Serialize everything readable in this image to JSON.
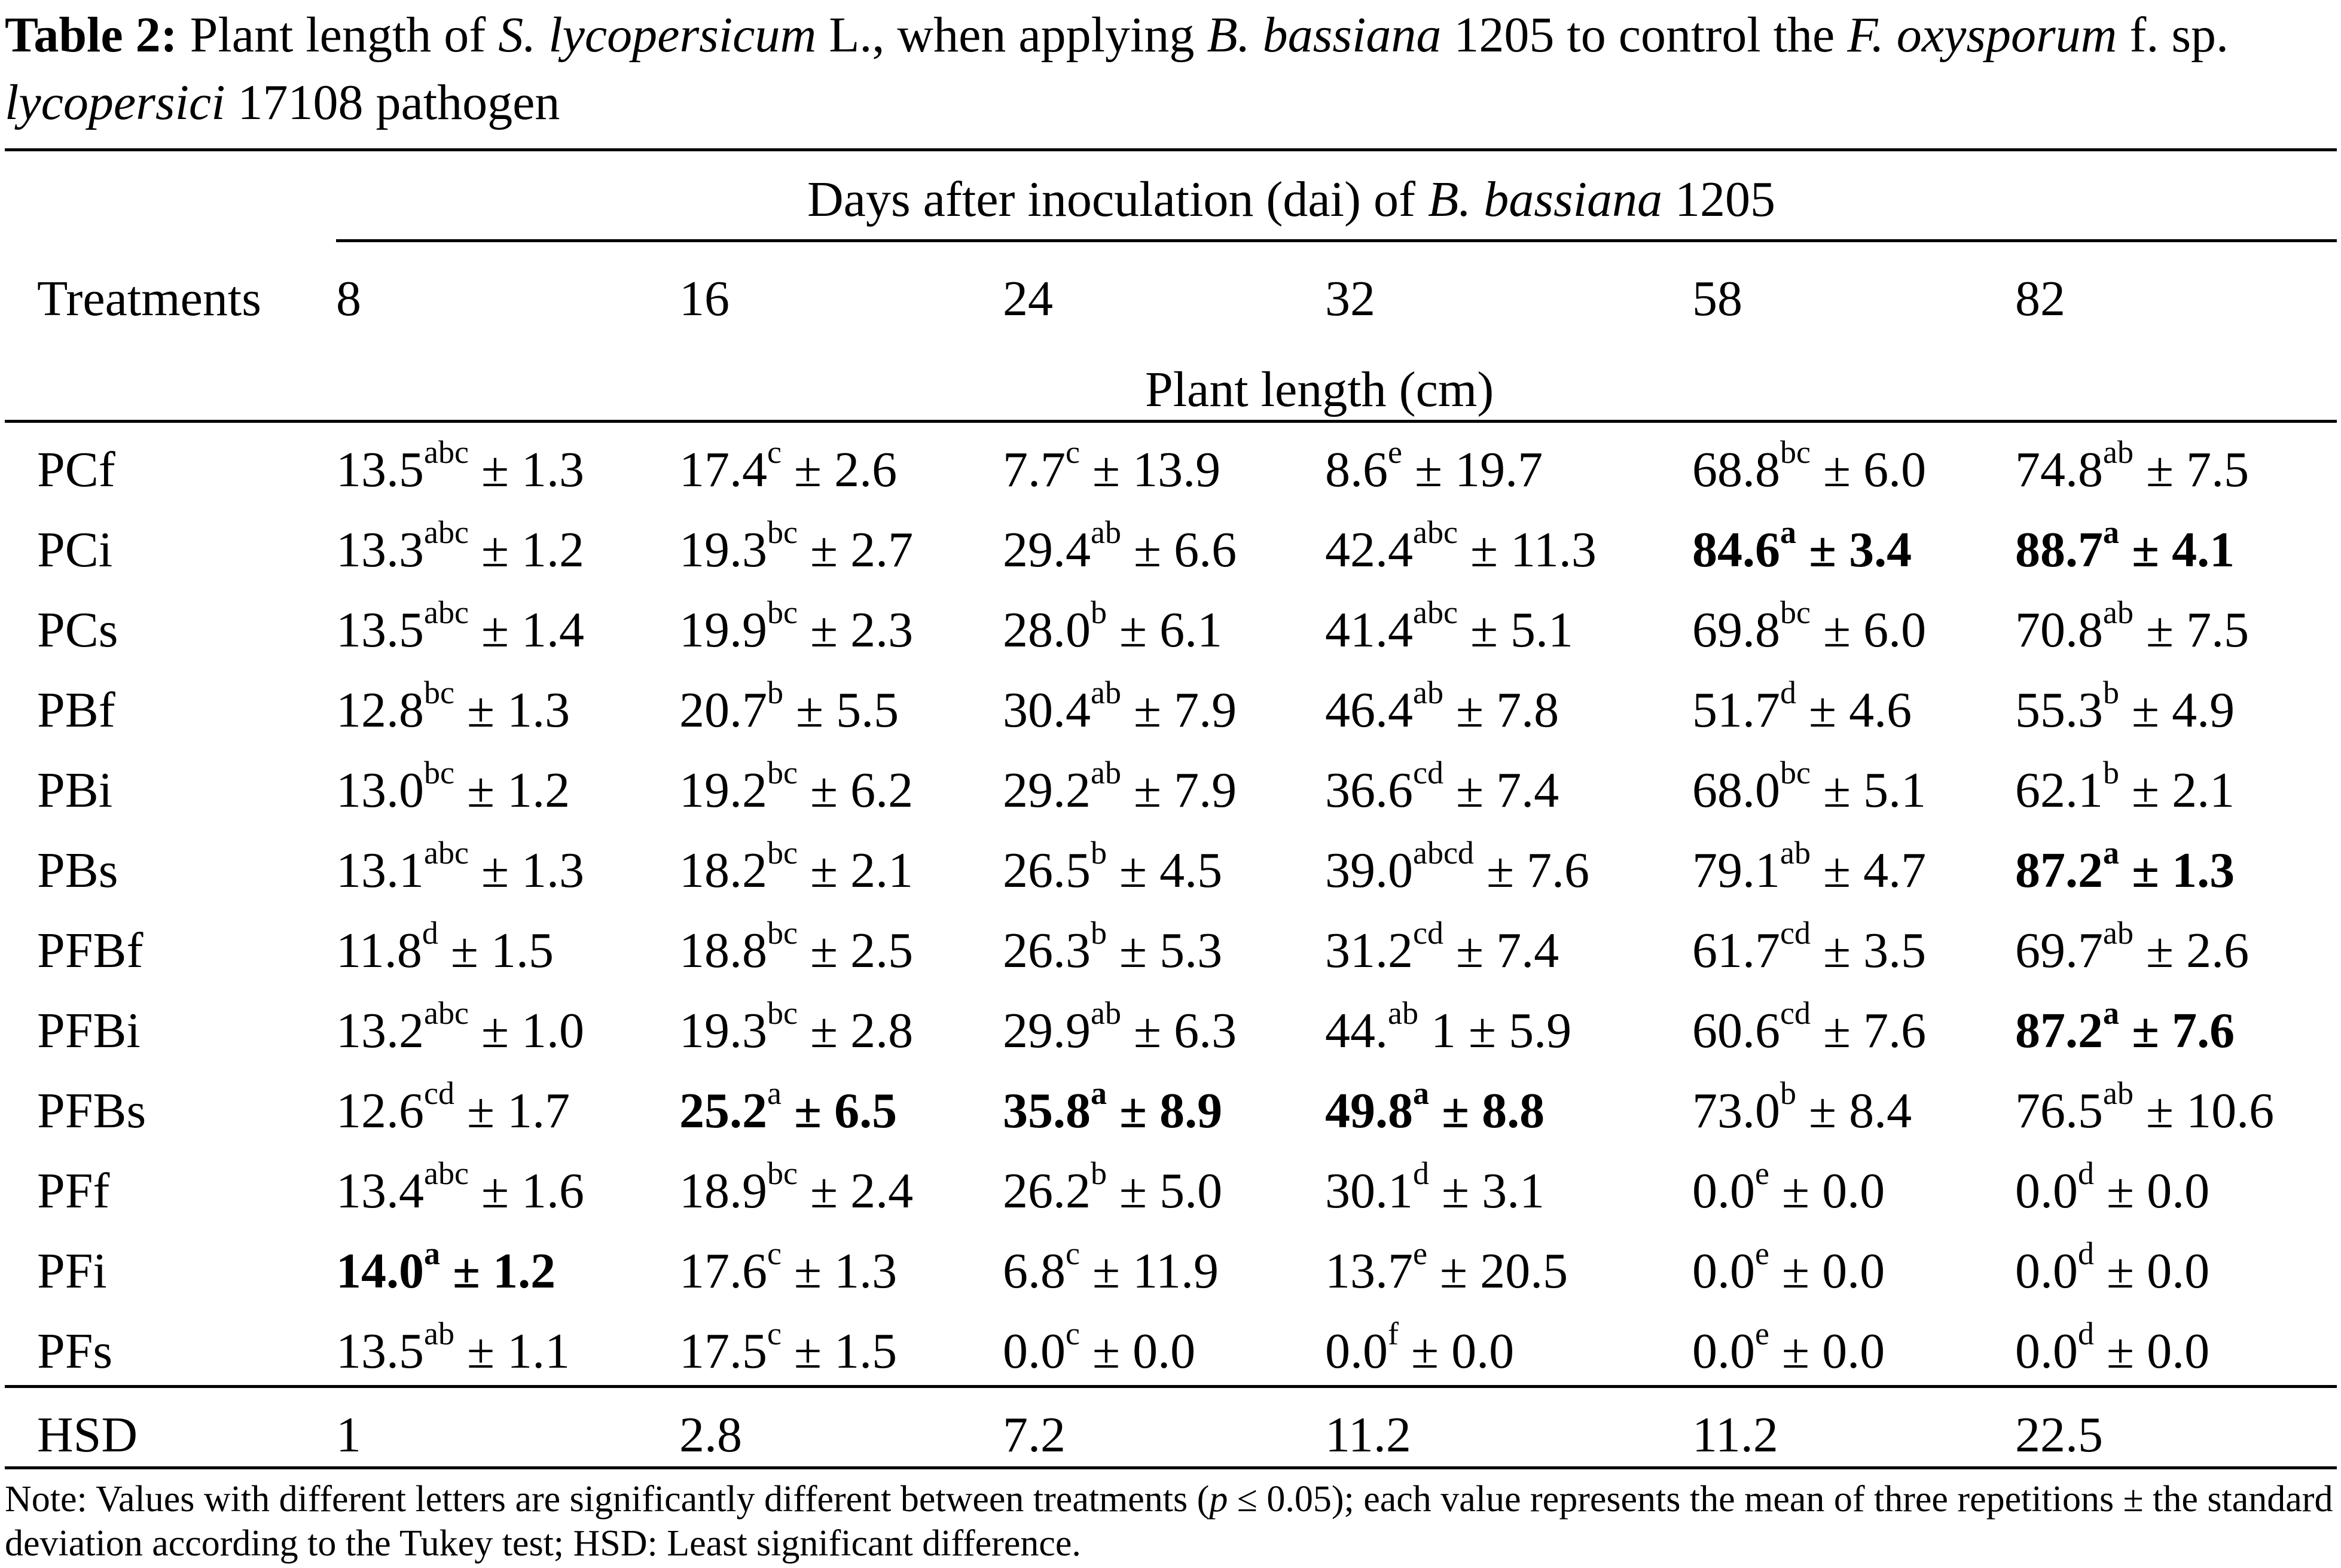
{
  "caption": {
    "label": "Table 2:",
    "parts": [
      {
        "text": "Plant length of ",
        "italic": false
      },
      {
        "text": "S. lycopersicum",
        "italic": true
      },
      {
        "text": " L., when applying ",
        "italic": false
      },
      {
        "text": "B. bassiana",
        "italic": true
      },
      {
        "text": " 1205 to control the ",
        "italic": false
      },
      {
        "text": "F. oxysporum",
        "italic": true
      },
      {
        "text": " f. sp. ",
        "italic": false
      },
      {
        "text": "lycopersici",
        "italic": true
      },
      {
        "text": " 17108 pathogen",
        "italic": false
      }
    ]
  },
  "header": {
    "span_prefix": "Days after inoculation (dai) of ",
    "span_italic": "B. bassiana",
    "span_suffix": " 1205",
    "treatments_label": "Treatments",
    "days": [
      "8",
      "16",
      "24",
      "32",
      "58",
      "82"
    ],
    "unit_label": "Plant length (cm)"
  },
  "rows": [
    {
      "name": "PCf",
      "cells": [
        {
          "mean": "13.5",
          "sup": "abc",
          "sd": "1.3",
          "bold": false
        },
        {
          "mean": "17.4",
          "sup": "c",
          "sd": "2.6",
          "bold": false
        },
        {
          "mean": "7.7",
          "sup": "c",
          "sd": "13.9",
          "bold": false
        },
        {
          "mean": "8.6",
          "sup": "e",
          "sd": "19.7",
          "bold": false
        },
        {
          "mean": "68.8",
          "sup": "bc",
          "sd": "6.0",
          "bold": false
        },
        {
          "mean": "74.8",
          "sup": "ab",
          "sd": "7.5",
          "bold": false
        }
      ]
    },
    {
      "name": "PCi",
      "cells": [
        {
          "mean": "13.3",
          "sup": "abc",
          "sd": "1.2",
          "bold": false
        },
        {
          "mean": "19.3",
          "sup": "bc",
          "sd": "2.7",
          "bold": false
        },
        {
          "mean": "29.4",
          "sup": "ab",
          "sd": "6.6",
          "bold": false
        },
        {
          "mean": "42.4",
          "sup": "abc",
          "sd": "11.3",
          "bold": false
        },
        {
          "mean": "84.6",
          "sup": "a",
          "sd": "3.4",
          "bold": true
        },
        {
          "mean": "88.7",
          "sup": "a",
          "sd": "4.1",
          "bold": true
        }
      ]
    },
    {
      "name": "PCs",
      "cells": [
        {
          "mean": "13.5",
          "sup": "abc",
          "sd": "1.4",
          "bold": false
        },
        {
          "mean": "19.9",
          "sup": "bc",
          "sd": "2.3",
          "bold": false
        },
        {
          "mean": "28.0",
          "sup": "b",
          "sd": "6.1",
          "bold": false
        },
        {
          "mean": "41.4",
          "sup": "abc",
          "sd": "5.1",
          "bold": false
        },
        {
          "mean": "69.8",
          "sup": "bc",
          "sd": "6.0",
          "bold": false
        },
        {
          "mean": "70.8",
          "sup": "ab",
          "sd": "7.5",
          "bold": false
        }
      ]
    },
    {
      "name": "PBf",
      "cells": [
        {
          "mean": "12.8",
          "sup": "bc",
          "sd": "1.3",
          "bold": false
        },
        {
          "mean": "20.7",
          "sup": "b",
          "sd": "5.5",
          "bold": false
        },
        {
          "mean": "30.4",
          "sup": "ab",
          "sd": "7.9",
          "bold": false
        },
        {
          "mean": "46.4",
          "sup": "ab",
          "sd": "7.8",
          "bold": false
        },
        {
          "mean": "51.7",
          "sup": "d",
          "sd": "4.6",
          "bold": false
        },
        {
          "mean": "55.3",
          "sup": "b",
          "sd": "4.9",
          "bold": false
        }
      ]
    },
    {
      "name": "PBi",
      "cells": [
        {
          "mean": "13.0",
          "sup": "bc",
          "sd": "1.2",
          "bold": false
        },
        {
          "mean": "19.2",
          "sup": "bc",
          "sd": "6.2",
          "bold": false
        },
        {
          "mean": "29.2",
          "sup": "ab",
          "sd": "7.9",
          "bold": false
        },
        {
          "mean": "36.6",
          "sup": "cd",
          "sd": "7.4",
          "bold": false
        },
        {
          "mean": "68.0",
          "sup": "bc",
          "sd": "5.1",
          "bold": false
        },
        {
          "mean": "62.1",
          "sup": "b",
          "sd": "2.1",
          "bold": false
        }
      ]
    },
    {
      "name": "PBs",
      "cells": [
        {
          "mean": "13.1",
          "sup": "abc",
          "sd": "1.3",
          "bold": false
        },
        {
          "mean": "18.2",
          "sup": "bc",
          "sd": "2.1",
          "bold": false
        },
        {
          "mean": "26.5",
          "sup": "b",
          "sd": "4.5",
          "bold": false
        },
        {
          "mean": "39.0",
          "sup": "abcd",
          "sd": "7.6",
          "bold": false
        },
        {
          "mean": "79.1",
          "sup": "ab",
          "sd": "4.7",
          "bold": false
        },
        {
          "mean": "87.2",
          "sup": "a",
          "sd": "1.3",
          "bold": true
        }
      ]
    },
    {
      "name": "PFBf",
      "cells": [
        {
          "mean": "11.8",
          "sup": "d",
          "sd": "1.5",
          "bold": false
        },
        {
          "mean": "18.8",
          "sup": "bc",
          "sd": "2.5",
          "bold": false
        },
        {
          "mean": "26.3",
          "sup": "b",
          "sd": "5.3",
          "bold": false
        },
        {
          "mean": "31.2",
          "sup": "cd",
          "sd": "7.4",
          "bold": false
        },
        {
          "mean": "61.7",
          "sup": "cd",
          "sd": "3.5",
          "bold": false
        },
        {
          "mean": "69.7",
          "sup": "ab",
          "sd": "2.6",
          "bold": false
        }
      ]
    },
    {
      "name": "PFBi",
      "cells": [
        {
          "mean": "13.2",
          "sup": "abc",
          "sd": "1.0",
          "bold": false
        },
        {
          "mean": "19.3",
          "sup": "bc",
          "sd": "2.8",
          "bold": false
        },
        {
          "mean": "29.9",
          "sup": "ab",
          "sd": "6.3",
          "bold": false
        },
        {
          "mean": "44.",
          "sup": "ab",
          "sd": "5.9",
          "bold": false,
          "after": " 1"
        },
        {
          "mean": "60.6",
          "sup": "cd",
          "sd": "7.6",
          "bold": false
        },
        {
          "mean": "87.2",
          "sup": "a",
          "sd": "7.6",
          "bold": true
        }
      ]
    },
    {
      "name": "PFBs",
      "cells": [
        {
          "mean": "12.6",
          "sup": "cd",
          "sd": "1.7",
          "bold": false
        },
        {
          "mean": "25.2",
          "sup": "a",
          "sd": "6.5",
          "bold": true,
          "sup_plain": true
        },
        {
          "mean": "35.8",
          "sup": "a",
          "sd": "8.9",
          "bold": true
        },
        {
          "mean": "49.8",
          "sup": "a",
          "sd": "8.8",
          "bold": true
        },
        {
          "mean": "73.0",
          "sup": "b",
          "sd": "8.4",
          "bold": false
        },
        {
          "mean": "76.5",
          "sup": "ab",
          "sd": "10.6",
          "bold": false
        }
      ]
    },
    {
      "name": "PFf",
      "cells": [
        {
          "mean": "13.4",
          "sup": "abc",
          "sd": "1.6",
          "bold": false
        },
        {
          "mean": "18.9",
          "sup": "bc",
          "sd": "2.4",
          "bold": false
        },
        {
          "mean": "26.2",
          "sup": "b",
          "sd": "5.0",
          "bold": false
        },
        {
          "mean": "30.1",
          "sup": "d",
          "sd": "3.1",
          "bold": false
        },
        {
          "mean": "0.0",
          "sup": "e",
          "sd": "0.0",
          "bold": false
        },
        {
          "mean": "0.0",
          "sup": "d",
          "sd": "0.0",
          "bold": false
        }
      ]
    },
    {
      "name": "PFi",
      "cells": [
        {
          "mean": "14.0",
          "sup": "a",
          "sd": "1.2",
          "bold": true
        },
        {
          "mean": "17.6",
          "sup": "c",
          "sd": "1.3",
          "bold": false
        },
        {
          "mean": "6.8",
          "sup": "c",
          "sd": "11.9",
          "bold": false
        },
        {
          "mean": "13.7",
          "sup": "e",
          "sd": "20.5",
          "bold": false
        },
        {
          "mean": "0.0",
          "sup": "e",
          "sd": "0.0",
          "bold": false
        },
        {
          "mean": "0.0",
          "sup": "d",
          "sd": "0.0",
          "bold": false
        }
      ]
    },
    {
      "name": "PFs",
      "cells": [
        {
          "mean": "13.5",
          "sup": "ab",
          "sd": "1.1",
          "bold": false
        },
        {
          "mean": "17.5",
          "sup": "c",
          "sd": "1.5",
          "bold": false
        },
        {
          "mean": "0.0",
          "sup": "c",
          "sd": "0.0",
          "bold": false
        },
        {
          "mean": "0.0",
          "sup": "f",
          "sd": "0.0",
          "bold": false
        },
        {
          "mean": "0.0",
          "sup": "e",
          "sd": "0.0",
          "bold": false
        },
        {
          "mean": "0.0",
          "sup": "d",
          "sd": "0.0",
          "bold": false
        }
      ]
    }
  ],
  "hsd": {
    "label": "HSD",
    "values": [
      "1",
      "2.8",
      "7.2",
      "11.2",
      "11.2",
      "22.5"
    ]
  },
  "note": {
    "prefix": "Note: Values with different letters are significantly different between treatments (",
    "p_symbol": "p",
    "suffix": " ≤ 0.05); each value represents the mean of three repetitions ± the standard deviation according to the Tukey test; HSD: Least significant difference."
  }
}
